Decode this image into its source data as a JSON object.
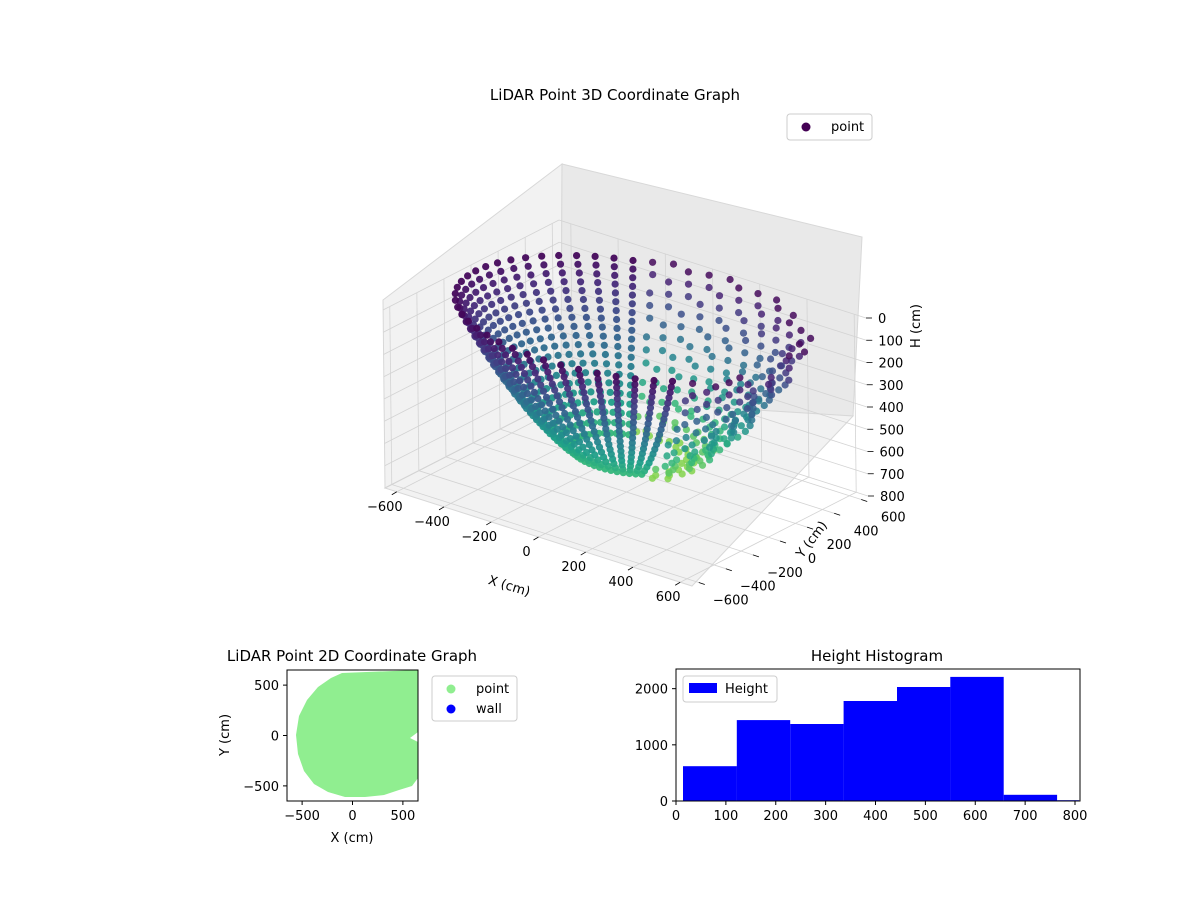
{
  "chart_data": [
    {
      "type": "scatter",
      "projection": "3d",
      "title": "LiDAR Point 3D Coordinate Graph",
      "xlabel": "X (cm)",
      "ylabel": "Y (cm)",
      "zlabel": "H (cm)",
      "xlim": [
        -650,
        650
      ],
      "ylim": [
        -650,
        650
      ],
      "zlim": [
        0,
        800
      ],
      "z_inverted": true,
      "xticks": [
        "−600",
        "−400",
        "−200",
        "0",
        "200",
        "400",
        "600"
      ],
      "yticks": [
        "−600",
        "−400",
        "−200",
        "0",
        "200",
        "400",
        "600"
      ],
      "zticks": [
        "0",
        "100",
        "200",
        "300",
        "400",
        "500",
        "600",
        "700",
        "800"
      ],
      "legend": {
        "entries": [
          "point"
        ],
        "position": "top-right"
      },
      "colormap": "viridis",
      "grid": true,
      "series": [
        {
          "name": "point",
          "color": "#440154"
        }
      ],
      "description_of_data": "Bowl-shaped point cloud; horizontal radius grows with depth H, colored by height"
    },
    {
      "type": "scatter",
      "title": "LiDAR Point 2D Coordinate Graph",
      "xlabel": "X (cm)",
      "ylabel": "Y (cm)",
      "xlim": [
        -650,
        650
      ],
      "ylim": [
        -650,
        650
      ],
      "xticks": [
        "−500",
        "0",
        "500"
      ],
      "yticks": [
        "−500",
        "0",
        "500"
      ],
      "legend": {
        "entries": [
          "point",
          "wall"
        ],
        "position": "outside-right"
      },
      "series": [
        {
          "name": "point",
          "color": "#90ee90"
        },
        {
          "name": "wall",
          "color": "#0000ff"
        }
      ]
    },
    {
      "type": "bar",
      "subtype": "histogram",
      "title": "Height Histogram",
      "xlim": [
        0,
        810
      ],
      "ylim": [
        0,
        2350
      ],
      "xticks": [
        "0",
        "100",
        "200",
        "300",
        "400",
        "500",
        "600",
        "700",
        "800"
      ],
      "yticks": [
        "0",
        "1000",
        "2000"
      ],
      "legend": {
        "entries": [
          "Height"
        ],
        "position": "top-left"
      },
      "series": [
        {
          "name": "Height",
          "color": "#0000ff",
          "bin_edges": [
            14,
            122,
            229,
            336,
            443,
            550,
            657,
            764,
            808
          ],
          "values": [
            620,
            1440,
            1370,
            1780,
            2030,
            2210,
            110,
            15
          ]
        }
      ]
    }
  ]
}
